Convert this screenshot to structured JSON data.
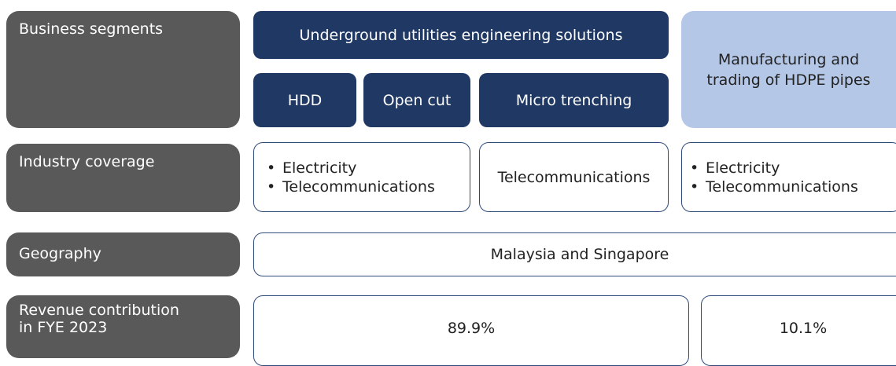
{
  "rows": [
    {
      "label": "Business segments"
    },
    {
      "label": "Industry coverage"
    },
    {
      "label": "Geography"
    },
    {
      "label": "Revenue contribution in FYE 2023"
    }
  ],
  "segments": {
    "main": "Underground utilities engineering solutions",
    "sub": [
      "HDD",
      "Open cut",
      "Micro trenching"
    ],
    "other": "Manufacturing and trading of HDPE pipes"
  },
  "coverage": [
    [
      "Electricity",
      "Telecommunications"
    ],
    [
      "Telecommunications"
    ],
    [
      "Electricity",
      "Telecommunications"
    ]
  ],
  "geography": "Malaysia and Singapore",
  "revenue": [
    "89.9%",
    "10.1%"
  ]
}
